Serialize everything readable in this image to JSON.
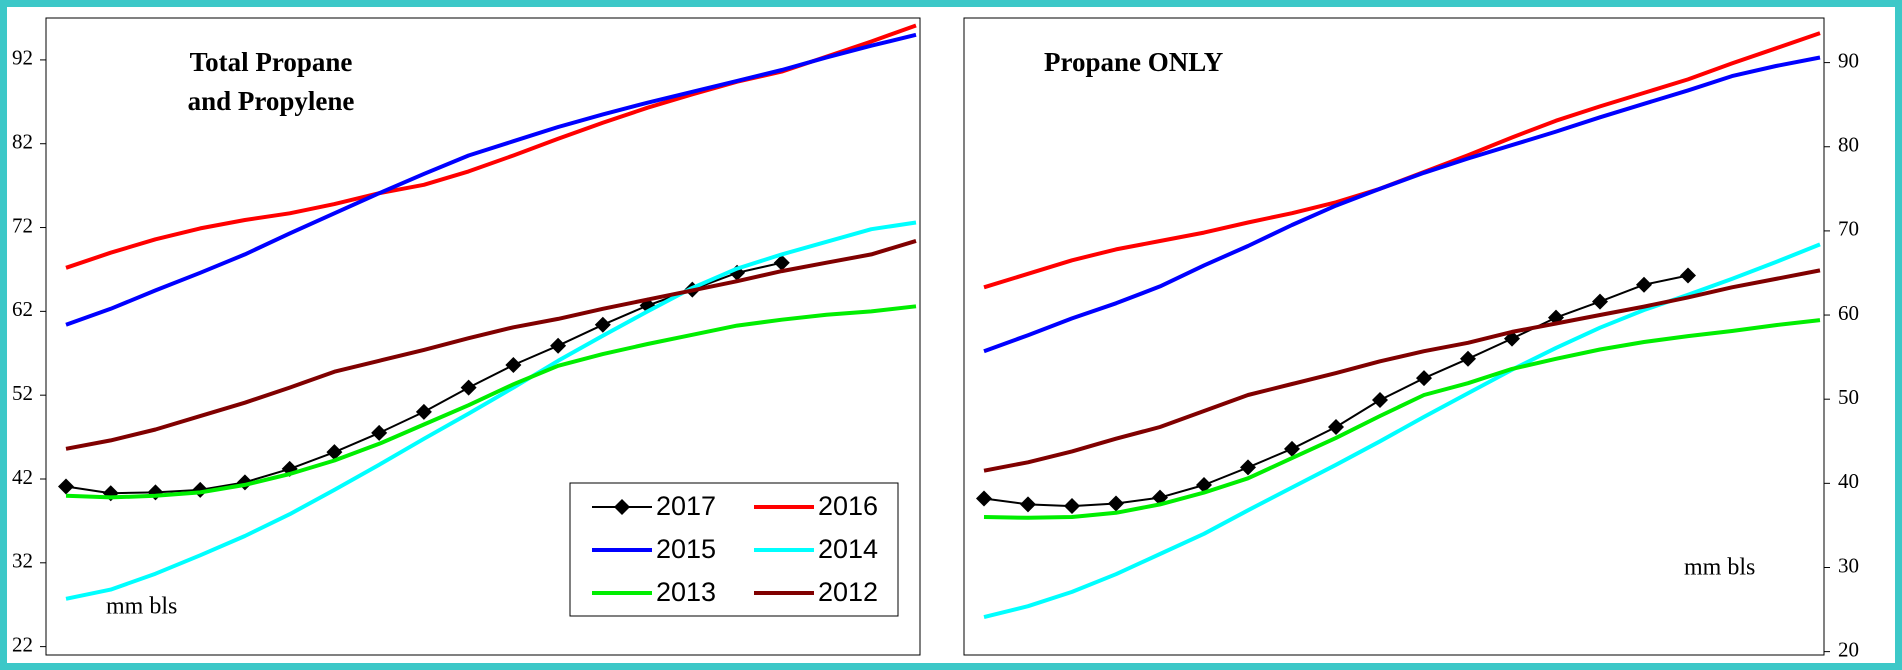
{
  "chart_data": [
    {
      "type": "line",
      "title": [
        "Total Propane",
        "and Propylene"
      ],
      "annotation": "mm  bls",
      "y_axis_side": "left",
      "legend": "lower right",
      "categories": [
        null,
        null,
        null,
        null,
        null,
        null,
        null,
        null,
        null,
        null,
        null,
        null,
        null,
        null,
        null,
        null,
        null,
        null,
        null,
        null
      ],
      "ylim": [
        21,
        97
      ],
      "yticks": [
        22,
        32,
        42,
        52,
        62,
        72,
        82,
        92
      ],
      "series": [
        {
          "name": "2017",
          "color": "#000000",
          "marker": "diamond",
          "values": [
            41.1,
            40.3,
            40.4,
            40.7,
            41.6,
            43.2,
            45.2,
            47.5,
            50.0,
            52.9,
            55.6,
            57.9,
            60.4,
            62.7,
            64.6,
            66.6,
            67.8,
            null,
            null,
            null
          ]
        },
        {
          "name": "2016",
          "color": "#ff0000",
          "values": [
            67.2,
            69.0,
            70.6,
            71.9,
            72.9,
            73.7,
            74.8,
            76.1,
            77.1,
            78.7,
            80.6,
            82.6,
            84.5,
            86.3,
            87.9,
            89.4,
            90.6,
            92.4,
            94.2,
            96.1
          ]
        },
        {
          "name": "2015",
          "color": "#0000ff",
          "values": [
            60.4,
            62.3,
            64.5,
            66.6,
            68.8,
            71.3,
            73.7,
            76.1,
            78.4,
            80.6,
            82.3,
            84.0,
            85.5,
            86.9,
            88.2,
            89.5,
            90.8,
            92.3,
            93.7,
            95.0
          ]
        },
        {
          "name": "2014",
          "color": "#00ffff",
          "values": [
            27.7,
            28.8,
            30.7,
            32.9,
            35.2,
            37.8,
            40.7,
            43.7,
            46.8,
            49.8,
            52.9,
            56.1,
            59.1,
            62.0,
            64.8,
            67.1,
            68.8,
            70.3,
            71.8,
            72.6
          ]
        },
        {
          "name": "2013",
          "color": "#00ee00",
          "values": [
            40.0,
            39.8,
            40.0,
            40.4,
            41.3,
            42.6,
            44.2,
            46.2,
            48.5,
            50.8,
            53.3,
            55.5,
            56.9,
            58.1,
            59.2,
            60.3,
            61.0,
            61.6,
            62.0,
            62.6
          ]
        },
        {
          "name": "2012",
          "color": "#800000",
          "values": [
            45.6,
            46.6,
            47.9,
            49.5,
            51.1,
            52.9,
            54.8,
            56.1,
            57.4,
            58.8,
            60.1,
            61.1,
            62.3,
            63.4,
            64.5,
            65.6,
            66.8,
            67.8,
            68.8,
            70.4
          ]
        }
      ]
    },
    {
      "type": "line",
      "title": "Propane ONLY",
      "annotation": "mm  bls",
      "y_axis_side": "right",
      "legend": false,
      "categories": [
        null,
        null,
        null,
        null,
        null,
        null,
        null,
        null,
        null,
        null,
        null,
        null,
        null,
        null,
        null,
        null,
        null,
        null,
        null,
        null
      ],
      "ylim": [
        19.6,
        95.3
      ],
      "yticks": [
        20,
        30,
        40,
        50,
        60,
        70,
        80,
        90
      ],
      "series": [
        {
          "name": "2017",
          "color": "#000000",
          "marker": "diamond",
          "values": [
            38.2,
            37.5,
            37.3,
            37.6,
            38.3,
            39.8,
            41.9,
            44.1,
            46.7,
            49.9,
            52.5,
            54.8,
            57.2,
            59.7,
            61.6,
            63.6,
            64.7,
            null,
            null,
            null
          ]
        },
        {
          "name": "2016",
          "color": "#ff0000",
          "values": [
            63.3,
            64.9,
            66.5,
            67.8,
            68.8,
            69.8,
            71.0,
            72.1,
            73.4,
            75.0,
            77.0,
            79.0,
            81.1,
            83.1,
            84.8,
            86.4,
            88.0,
            89.9,
            91.7,
            93.5
          ]
        },
        {
          "name": "2015",
          "color": "#0000ff",
          "values": [
            55.7,
            57.6,
            59.6,
            61.4,
            63.4,
            65.9,
            68.2,
            70.7,
            73.0,
            75.0,
            76.9,
            78.6,
            80.2,
            81.8,
            83.5,
            85.1,
            86.7,
            88.4,
            89.6,
            90.6
          ]
        },
        {
          "name": "2014",
          "color": "#00ffff",
          "values": [
            24.1,
            25.4,
            27.1,
            29.2,
            31.6,
            34.0,
            36.8,
            39.5,
            42.2,
            45.0,
            47.9,
            50.7,
            53.5,
            56.1,
            58.5,
            60.6,
            62.4,
            64.3,
            66.3,
            68.4
          ]
        },
        {
          "name": "2013",
          "color": "#00ee00",
          "values": [
            36.0,
            35.9,
            36.0,
            36.5,
            37.5,
            38.9,
            40.6,
            43.0,
            45.4,
            48.0,
            50.5,
            51.9,
            53.6,
            54.8,
            55.9,
            56.8,
            57.5,
            58.1,
            58.8,
            59.4
          ]
        },
        {
          "name": "2012",
          "color": "#800000",
          "values": [
            41.5,
            42.5,
            43.8,
            45.3,
            46.7,
            48.6,
            50.5,
            51.8,
            53.1,
            54.5,
            55.7,
            56.7,
            58.0,
            59.0,
            60.0,
            61.0,
            62.1,
            63.3,
            64.3,
            65.3
          ]
        }
      ]
    }
  ]
}
